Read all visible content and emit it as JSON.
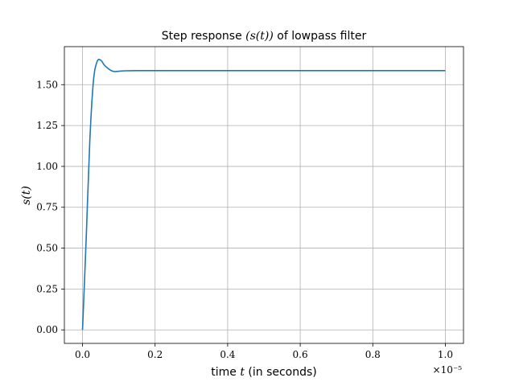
{
  "chart_data": {
    "type": "line",
    "title": "Step response ",
    "title_math": "(s(t))",
    "title_tail": " of lowpass filter",
    "xlabel_pre": "time ",
    "xlabel_math": "t",
    "xlabel_post": " (in seconds)",
    "ylabel": "s(t)",
    "x_offset_label": "×10⁻⁵",
    "xlim": [
      -0.05,
      1.05
    ],
    "ylim": [
      -0.0825,
      1.7325
    ],
    "x_scale_factor": 1e-05,
    "x_ticks": [
      0.0,
      0.2,
      0.4,
      0.6,
      0.8,
      1.0
    ],
    "x_tick_labels": [
      "0.0",
      "0.2",
      "0.4",
      "0.6",
      "0.8",
      "1.0"
    ],
    "y_ticks": [
      0.0,
      0.25,
      0.5,
      0.75,
      1.0,
      1.25,
      1.5
    ],
    "y_tick_labels": [
      "0.00",
      "0.25",
      "0.50",
      "0.75",
      "1.00",
      "1.25",
      "1.50"
    ],
    "grid": true,
    "line_color": "#1f77b4",
    "series": [
      {
        "x": [
          0.0,
          0.01,
          0.02,
          0.03,
          0.04,
          0.05,
          0.06,
          0.07,
          0.08,
          0.09,
          0.1,
          0.12,
          0.15,
          0.2,
          0.3,
          0.5,
          0.7,
          1.0
        ],
        "values": [
          0.0,
          0.55,
          1.15,
          1.52,
          1.64,
          1.65,
          1.62,
          1.6,
          1.585,
          1.58,
          1.582,
          1.585,
          1.586,
          1.586,
          1.586,
          1.586,
          1.586,
          1.586
        ]
      }
    ]
  }
}
